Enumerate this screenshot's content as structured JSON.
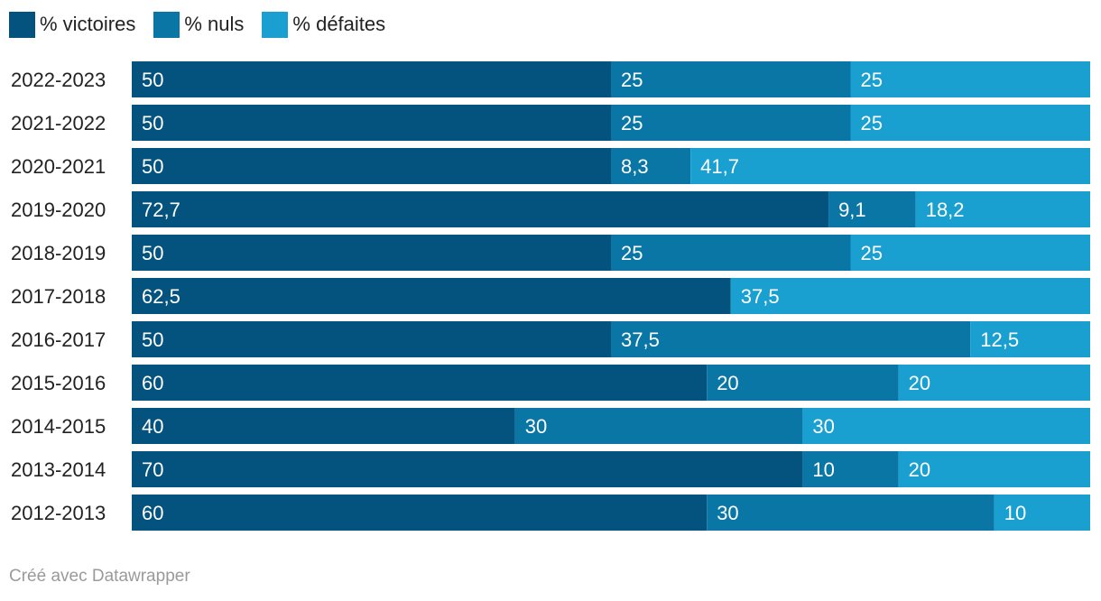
{
  "chart_data": {
    "type": "bar",
    "orientation": "horizontal",
    "stacked": true,
    "normalized_to": 100,
    "categories": [
      "2022-2023",
      "2021-2022",
      "2020-2021",
      "2019-2020",
      "2018-2019",
      "2017-2018",
      "2016-2017",
      "2015-2016",
      "2014-2015",
      "2013-2014",
      "2012-2013"
    ],
    "series": [
      {
        "name": "% victoires",
        "color": "#04537e",
        "values": [
          50,
          50,
          50,
          72.7,
          50,
          62.5,
          50,
          60,
          40,
          70,
          60
        ],
        "labels": [
          "50",
          "50",
          "50",
          "72,7",
          "50",
          "62,5",
          "50",
          "60",
          "40",
          "70",
          "60"
        ]
      },
      {
        "name": "% nuls",
        "color": "#0a76a6",
        "values": [
          25,
          25,
          8.3,
          9.1,
          25,
          0,
          37.5,
          20,
          30,
          10,
          30
        ],
        "labels": [
          "25",
          "25",
          "8,3",
          "9,1",
          "25",
          "",
          "37,5",
          "20",
          "30",
          "10",
          "30"
        ]
      },
      {
        "name": "% défaites",
        "color": "#1aa0d0",
        "values": [
          25,
          25,
          41.7,
          18.2,
          25,
          37.5,
          12.5,
          20,
          30,
          20,
          10
        ],
        "labels": [
          "25",
          "25",
          "41,7",
          "18,2",
          "25",
          "37,5",
          "12,5",
          "20",
          "30",
          "20",
          "10"
        ]
      }
    ],
    "xlim": [
      0,
      100
    ],
    "legend_position": "top-left"
  },
  "footer": {
    "credit": "Créé avec Datawrapper"
  }
}
